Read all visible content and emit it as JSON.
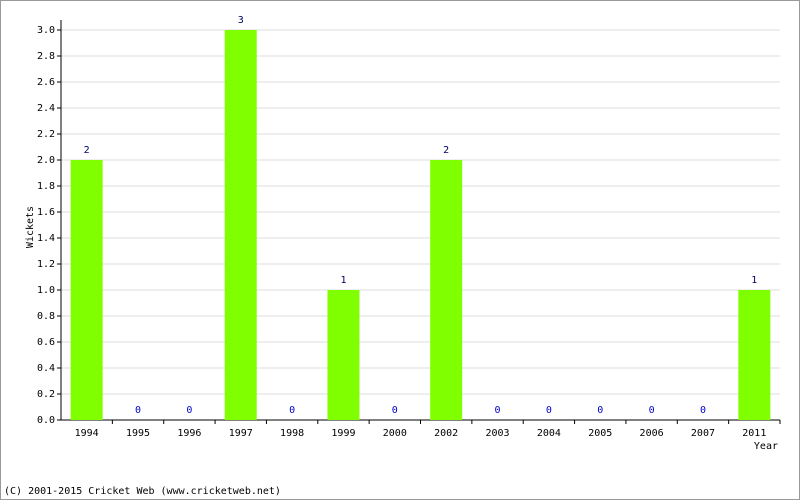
{
  "chart_data": {
    "type": "bar",
    "categories": [
      "1994",
      "1995",
      "1996",
      "1997",
      "1998",
      "1999",
      "2000",
      "2002",
      "2003",
      "2004",
      "2005",
      "2006",
      "2007",
      "2011"
    ],
    "values": [
      2,
      0,
      0,
      3,
      0,
      1,
      0,
      2,
      0,
      0,
      0,
      0,
      0,
      1
    ],
    "color": "#80ff00",
    "y_label": "Wickets",
    "x_label": "Year",
    "footer": "(C) 2001-2015 Cricket Web (www.cricketweb.net)",
    "ylim": [
      0,
      3
    ],
    "yticks": [
      {
        "value": 0,
        "label": "0.0"
      },
      {
        "value": 0.2,
        "label": "0.2"
      },
      {
        "value": 0.4,
        "label": "0.4"
      },
      {
        "value": 0.6,
        "label": "0.6"
      },
      {
        "value": 0.8,
        "label": "0.8"
      },
      {
        "value": 1,
        "label": "1.0"
      },
      {
        "value": 1.2,
        "label": "1.2"
      },
      {
        "value": 1.4,
        "label": "1.4"
      },
      {
        "value": 1.6,
        "label": "1.6"
      },
      {
        "value": 1.8,
        "label": "1.8"
      },
      {
        "value": 2,
        "label": "2.0"
      },
      {
        "value": 2.2,
        "label": "2.2"
      },
      {
        "value": 2.4,
        "label": "2.4"
      },
      {
        "value": 2.6,
        "label": "2.6"
      },
      {
        "value": 2.8,
        "label": "2.8"
      },
      {
        "value": 3,
        "label": "3.0"
      }
    ],
    "grid": true
  }
}
